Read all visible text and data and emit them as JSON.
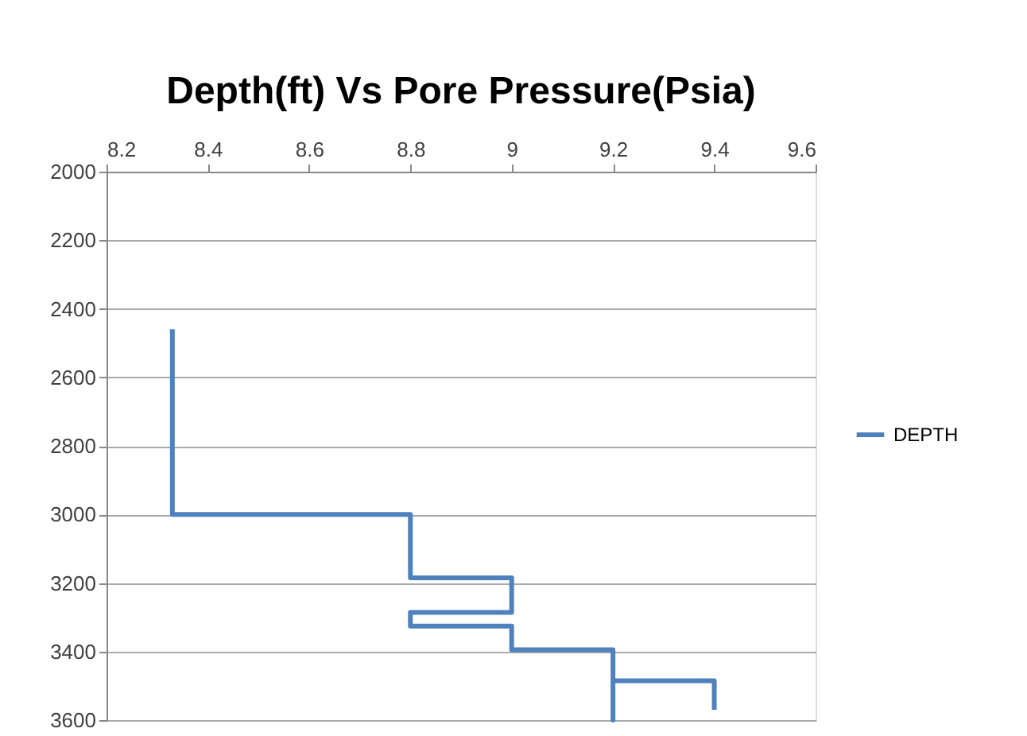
{
  "chart_data": {
    "type": "line",
    "title": "Depth(ft) Vs Pore Pressure(Psia)",
    "series": [
      {
        "name": "DEPTH",
        "color": "#4f81bd",
        "x": [
          8.33,
          8.33,
          8.8,
          8.8,
          9.0,
          9.0,
          8.8,
          8.8,
          9.0,
          9.0,
          9.2,
          9.2,
          9.2,
          9.4,
          9.4
        ],
        "values": [
          2460,
          3000,
          3000,
          3185,
          3185,
          3286,
          3286,
          3326,
          3326,
          3395,
          3395,
          3600,
          3485,
          3485,
          3570
        ]
      }
    ],
    "xlim": [
      8.2,
      9.6
    ],
    "xticks": [
      8.2,
      8.4,
      8.6,
      8.8,
      9,
      9.2,
      9.4,
      9.6
    ],
    "ylim": [
      3600,
      2000
    ],
    "yticks": [
      2000,
      2200,
      2400,
      2600,
      2800,
      3000,
      3200,
      3400,
      3600
    ],
    "grid": "y",
    "legend": "right",
    "marker": "none",
    "line_style": "solid"
  }
}
